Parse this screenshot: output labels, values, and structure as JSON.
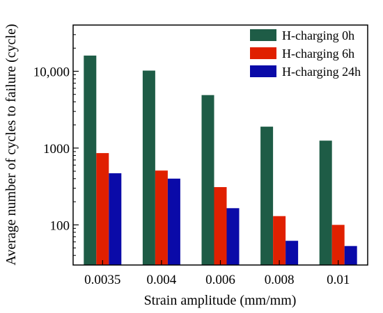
{
  "chart_data": {
    "type": "bar",
    "title": "",
    "xlabel": "Strain amplitude (mm/mm)",
    "ylabel": "Average number of cycles to failure (cycle)",
    "y_scale": "log",
    "ylim": [
      30,
      40000
    ],
    "yticks": [
      {
        "value": 100,
        "label": "100"
      },
      {
        "value": 1000,
        "label": "1000"
      },
      {
        "value": 10000,
        "label": "10,000"
      }
    ],
    "categories": [
      "0.0035",
      "0.004",
      "0.006",
      "0.008",
      "0.01"
    ],
    "legend_position": "top-right",
    "grid": false,
    "series": [
      {
        "name": "H-charging 0h",
        "color": "#1e5c46",
        "values": [
          16000,
          10200,
          4900,
          1900,
          1250
        ]
      },
      {
        "name": "H-charging 6h",
        "color": "#e02000",
        "values": [
          860,
          510,
          310,
          130,
          100
        ]
      },
      {
        "name": "H-charging 24h",
        "color": "#0a0aa8",
        "values": [
          470,
          400,
          165,
          62,
          53
        ]
      }
    ]
  }
}
